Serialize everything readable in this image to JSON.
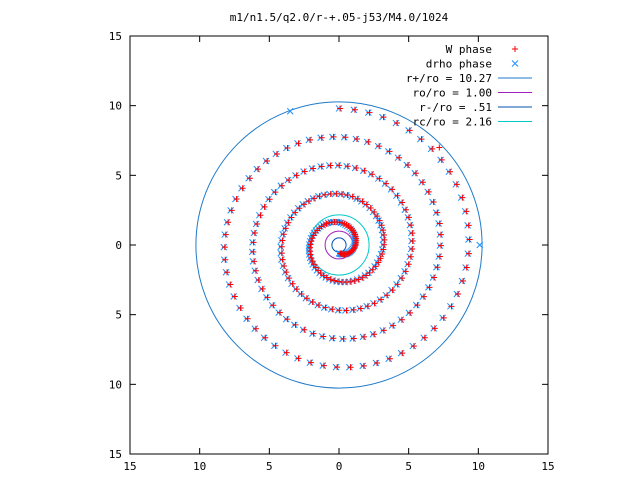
{
  "chart_data": {
    "type": "scatter",
    "title": "m1/n1.5/q2.0/r-+.05-j53/M4.0/1024",
    "xlabel": "",
    "ylabel": "",
    "xlim": [
      -15,
      15
    ],
    "ylim": [
      -15,
      15
    ],
    "x_ticks": [
      -15,
      -10,
      -5,
      0,
      5,
      10,
      15
    ],
    "y_ticks": [
      -15,
      -10,
      -5,
      0,
      5,
      10,
      15
    ],
    "x_tick_labels": [
      "15",
      "10",
      "5",
      "0",
      "5",
      "10",
      "15"
    ],
    "y_tick_labels": [
      "15",
      "10",
      "5",
      "0",
      "5",
      "10",
      "15"
    ],
    "grid": false,
    "legend_position": "top-right",
    "series": [
      {
        "name": "W phase",
        "kind": "points",
        "marker": "plus",
        "color": "#ff0000",
        "spiral": {
          "r_start": 0.6,
          "r_end": 9.8,
          "turns": 4.5,
          "points": 260
        },
        "extra_points": [
          [
            7.2,
            7.0
          ]
        ]
      },
      {
        "name": "drho phase",
        "kind": "points",
        "marker": "cross",
        "color": "#1e90ff",
        "spiral": {
          "r_start": 0.6,
          "r_end": 9.8,
          "turns": 4.5,
          "points": 260
        },
        "extra_points": [
          [
            10.1,
            0.0
          ],
          [
            -3.5,
            9.6
          ]
        ]
      },
      {
        "name": "r+/ro = 10.27",
        "label_value": "10.27",
        "kind": "circle",
        "radius": 10.27,
        "color": "#1f7ac8"
      },
      {
        "name": "ro/ro = 1.00",
        "label_value": "1.00",
        "kind": "circle",
        "radius": 1.0,
        "color": "#a020c0"
      },
      {
        "name": "r-/ro = .51",
        "label_value": ".51",
        "kind": "circle",
        "radius": 0.51,
        "color": "#0050b0"
      },
      {
        "name": "rc/ro = 2.16",
        "label_value": "2.16",
        "kind": "circle",
        "radius": 2.16,
        "color": "#00c8c8"
      }
    ],
    "legend": [
      "W phase",
      "drho phase",
      "r+/ro = 10.27",
      "ro/ro = 1.00",
      "r-/ro = .51",
      "rc/ro = 2.16"
    ]
  }
}
